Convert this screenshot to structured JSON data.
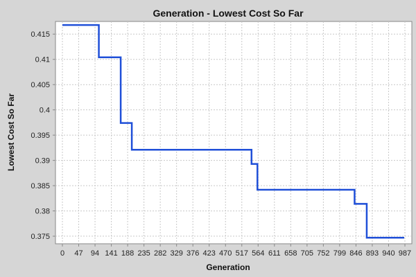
{
  "chart_data": {
    "type": "line",
    "title": "Generation - Lowest Cost So Far",
    "xlabel": "Generation",
    "ylabel": "Lowest Cost So Far",
    "xlim": [
      -20,
      1007
    ],
    "ylim": [
      0.3735,
      0.4175
    ],
    "x_ticks": [
      0,
      47,
      94,
      141,
      188,
      235,
      282,
      329,
      376,
      423,
      470,
      517,
      564,
      611,
      658,
      705,
      752,
      799,
      846,
      893,
      940,
      987
    ],
    "y_ticks": [
      0.375,
      0.38,
      0.385,
      0.39,
      0.395,
      0.4,
      0.405,
      0.41,
      0.415
    ],
    "y_tick_labels": [
      "0.375",
      "0.38",
      "0.385",
      "0.39",
      "0.395",
      "0.4",
      "0.405",
      "0.41",
      "0.415"
    ],
    "grid": true,
    "line_style": "step",
    "colors": {
      "background": "#d6d6d6",
      "plot_background": "#ffffff",
      "series": "#1f4fd8",
      "grid": "#c8c8c8",
      "axis": "#888888"
    },
    "series": [
      {
        "x": [
          0,
          105,
          105,
          168,
          168,
          200,
          200,
          545,
          545,
          562,
          562,
          842,
          842,
          877,
          877,
          985
        ],
        "y": [
          0.4168,
          0.4168,
          0.4104,
          0.4104,
          0.3974,
          0.3974,
          0.3921,
          0.3921,
          0.3893,
          0.3893,
          0.3842,
          0.3842,
          0.3814,
          0.3814,
          0.3747,
          0.3747
        ]
      }
    ]
  }
}
